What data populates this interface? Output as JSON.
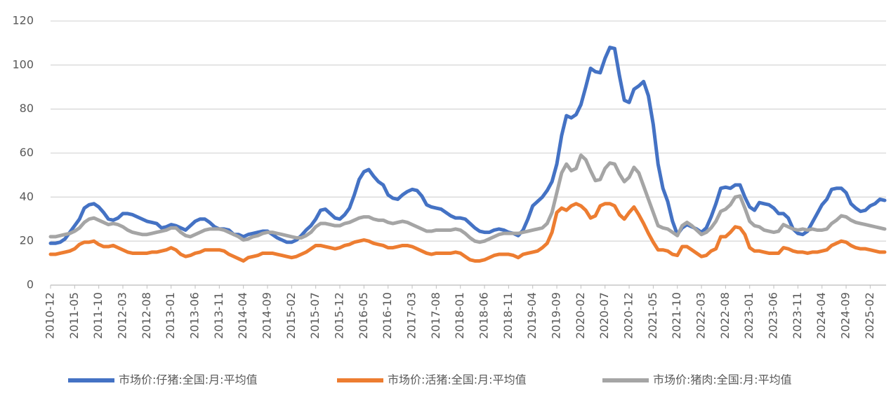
{
  "chart_data": {
    "type": "line",
    "categories": [
      "2010-12",
      null,
      null,
      null,
      null,
      "2011-05",
      null,
      null,
      null,
      null,
      "2011-10",
      null,
      null,
      null,
      null,
      "2012-03",
      null,
      null,
      null,
      null,
      "2012-08",
      null,
      null,
      null,
      null,
      "2013-01",
      null,
      null,
      null,
      null,
      "2013-06",
      null,
      null,
      null,
      null,
      "2013-11",
      null,
      null,
      null,
      null,
      "2014-04",
      null,
      null,
      null,
      null,
      "2014-09",
      null,
      null,
      null,
      null,
      "2015-02",
      null,
      null,
      null,
      null,
      "2015-07",
      null,
      null,
      null,
      null,
      "2015-12",
      null,
      null,
      null,
      null,
      "2016-05",
      null,
      null,
      null,
      null,
      "2016-10",
      null,
      null,
      null,
      null,
      "2017-03",
      null,
      null,
      null,
      null,
      "2017-08",
      null,
      null,
      null,
      null,
      "2018-01",
      null,
      null,
      null,
      null,
      "2018-06",
      null,
      null,
      null,
      null,
      "2018-11",
      null,
      null,
      null,
      null,
      "2019-04",
      null,
      null,
      null,
      null,
      "2019-09",
      null,
      null,
      null,
      null,
      "2020-02",
      null,
      null,
      null,
      null,
      "2020-07",
      null,
      null,
      null,
      null,
      "2020-12",
      null,
      null,
      null,
      null,
      "2021-05",
      null,
      null,
      null,
      null,
      "2021-10",
      null,
      null,
      null,
      null,
      "2022-03",
      null,
      null,
      null,
      null,
      "2022-08",
      null,
      null,
      null,
      null,
      "2023-01",
      null,
      null,
      null,
      null,
      "2023-06",
      null,
      null,
      null,
      null,
      "2023-11",
      null,
      null,
      null,
      null,
      "2024-04",
      null,
      null,
      null,
      null,
      "2024-09",
      null,
      null,
      null,
      null,
      "2025-02",
      null,
      null,
      null
    ],
    "series": [
      {
        "name": "市场价:仔猪:全国:月:平均值",
        "color": "#4472c4",
        "values": [
          19,
          19,
          19.5,
          21,
          24,
          27,
          30,
          35,
          36.5,
          37,
          35.5,
          33,
          30,
          29.5,
          30.5,
          32.5,
          32.5,
          32,
          31,
          30,
          29,
          28.5,
          28,
          26,
          26.5,
          27.5,
          27,
          26,
          25,
          27,
          29,
          30,
          30,
          28.5,
          26.5,
          25.5,
          25.5,
          25,
          23,
          23,
          22,
          23,
          23.5,
          24,
          24.5,
          24.5,
          23,
          21.5,
          20.5,
          19.5,
          19.5,
          20.5,
          22.5,
          25,
          27,
          30,
          34,
          34.5,
          32.5,
          30.5,
          30,
          32,
          35,
          41,
          48,
          51.5,
          52.5,
          49.5,
          47,
          45.5,
          41,
          39.5,
          39,
          41,
          42.5,
          43.5,
          43,
          40.5,
          36.5,
          35.5,
          35,
          34.5,
          33,
          31.5,
          30.5,
          30.5,
          30,
          28,
          26,
          24.5,
          24,
          24,
          25,
          25.5,
          25,
          24,
          23.5,
          22.5,
          25,
          30,
          36,
          38,
          40,
          43,
          47,
          55,
          68,
          77,
          76,
          77.5,
          82,
          90,
          98.5,
          97,
          96.5,
          103,
          108,
          107.5,
          95,
          84,
          83,
          89,
          90.5,
          92.5,
          86,
          73,
          55,
          44,
          38,
          29,
          23,
          26,
          27.5,
          26.5,
          25.5,
          24,
          26,
          31,
          37,
          44,
          44.5,
          44,
          45.5,
          45.5,
          40,
          35.5,
          34,
          37.5,
          37,
          36.5,
          35,
          32.5,
          32.5,
          30.5,
          25.5,
          23.5,
          23,
          24.5,
          28.5,
          32.5,
          36.5,
          39,
          43.5,
          44,
          44,
          42,
          37,
          35,
          33.5,
          34,
          36,
          37,
          39,
          38.5
        ]
      },
      {
        "name": "市场价:活猪:全国:月:平均值",
        "color": "#ed7d31",
        "values": [
          14,
          14,
          14.5,
          15,
          15.5,
          16.5,
          18.5,
          19.5,
          19.5,
          20,
          18.5,
          17.5,
          17.5,
          18,
          17,
          16,
          15,
          14.5,
          14.5,
          14.5,
          14.5,
          15,
          15,
          15.5,
          16,
          17,
          16,
          14,
          13,
          13.5,
          14.5,
          15,
          16,
          16,
          16,
          16,
          15.5,
          14,
          13,
          12,
          11,
          12.5,
          13,
          13.5,
          14.5,
          14.5,
          14.5,
          14,
          13.5,
          13,
          12.5,
          13,
          14,
          15,
          16.5,
          18,
          18,
          17.5,
          17,
          16.5,
          17,
          18,
          18.5,
          19.5,
          20,
          20.5,
          20,
          19,
          18.5,
          18,
          17,
          17,
          17.5,
          18,
          18,
          17.5,
          16.5,
          15.5,
          14.5,
          14,
          14.5,
          14.5,
          14.5,
          14.5,
          15,
          14.5,
          13,
          11.5,
          11,
          11,
          11.5,
          12.5,
          13.5,
          14,
          14,
          14,
          13.5,
          12.5,
          14,
          14.5,
          15,
          15.5,
          17,
          19,
          24,
          33,
          35,
          34,
          36,
          37,
          36,
          34,
          30.5,
          31.5,
          36,
          37,
          37,
          36,
          32,
          30,
          33,
          35.5,
          32,
          28,
          23.5,
          19.5,
          16,
          16,
          15.5,
          14,
          13.5,
          17.5,
          17.5,
          16,
          14.5,
          13,
          13.5,
          15.5,
          16.5,
          22,
          22,
          24,
          26.5,
          26,
          23,
          17,
          15.5,
          15.5,
          15,
          14.5,
          14.5,
          14.5,
          17,
          16.5,
          15.5,
          15,
          15,
          14.5,
          15,
          15,
          15.5,
          16,
          18,
          19,
          20,
          19.5,
          18,
          17,
          16.5,
          16.5,
          16,
          15.5,
          15,
          15
        ]
      },
      {
        "name": "市场价:猪肉:全国:月:平均值",
        "color": "#a5a5a5",
        "values": [
          22,
          22,
          22.5,
          23,
          23.5,
          24.5,
          26,
          28.5,
          30,
          30.5,
          29.5,
          28.5,
          27.5,
          28,
          27.5,
          26.5,
          25,
          24,
          23.5,
          23,
          23,
          23.5,
          24,
          24.5,
          25,
          26,
          26,
          24,
          22.5,
          22,
          23,
          24,
          25,
          25.5,
          25.5,
          25.5,
          25,
          24,
          23,
          22,
          20.5,
          21,
          22,
          22.5,
          23.5,
          24,
          24,
          23.5,
          23,
          22.5,
          22,
          21.5,
          21.5,
          22.5,
          24,
          26.5,
          28,
          28,
          27.5,
          27,
          27,
          28,
          28.5,
          29.5,
          30.5,
          31,
          31,
          30,
          29.5,
          29.5,
          28.5,
          28,
          28.5,
          29,
          28.5,
          27.5,
          26.5,
          25.5,
          24.5,
          24.5,
          25,
          25,
          25,
          25,
          25.5,
          25,
          23.5,
          21.5,
          20,
          19.5,
          20,
          21,
          22,
          23,
          23.5,
          23.5,
          23.5,
          23.5,
          24,
          24.5,
          25,
          25.5,
          26,
          28,
          33,
          42,
          51,
          55,
          52,
          53,
          59,
          57,
          52,
          47.5,
          48,
          53,
          55.5,
          55,
          50.5,
          47,
          49,
          53.5,
          51,
          45,
          39,
          33,
          27,
          26,
          25.5,
          24,
          22.5,
          27,
          28.5,
          27,
          25,
          23,
          24,
          26,
          29,
          33.5,
          34.5,
          36.5,
          40,
          40.5,
          35,
          29,
          27,
          26.5,
          25,
          24.5,
          24,
          24.5,
          27.5,
          26.5,
          25.5,
          25,
          25.5,
          25,
          25.5,
          25,
          25,
          25.5,
          28,
          29.5,
          31.5,
          31,
          29.5,
          28.5,
          28,
          27.5,
          27,
          26.5,
          26,
          25.5
        ]
      }
    ],
    "ylim": [
      0,
      120
    ],
    "yticks": [
      0,
      20,
      40,
      60,
      80,
      100,
      120
    ],
    "grid": true,
    "legend": "bottom"
  }
}
